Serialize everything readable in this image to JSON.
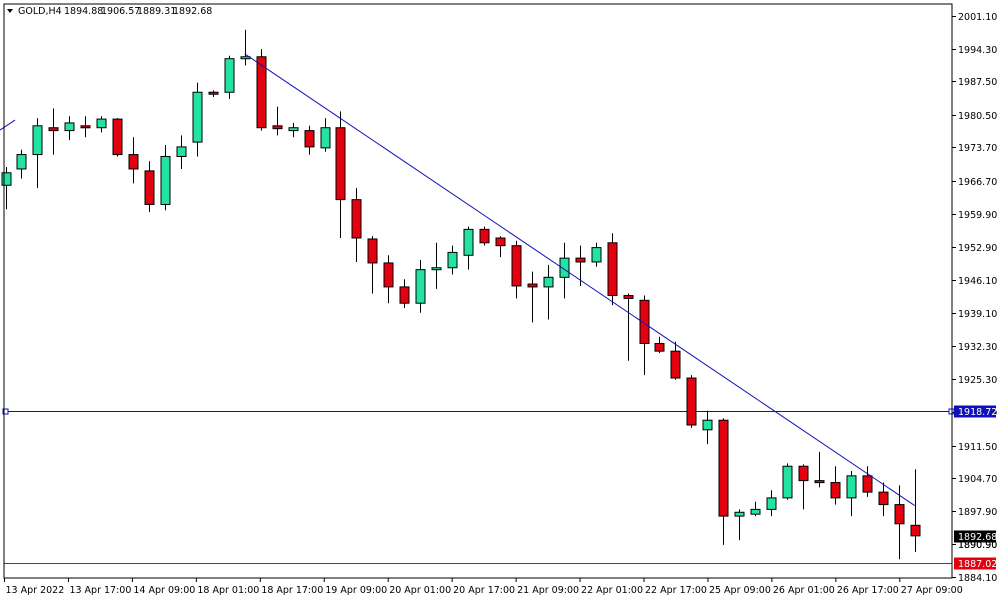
{
  "header": {
    "symbol_label": "GOLD,H4",
    "open": "1894.88",
    "high": "1906.57",
    "low": "1889.31",
    "close": "1892.68"
  },
  "colors": {
    "bull": "#22e3a0",
    "bear": "#e3000f",
    "wick": "#000000",
    "trendline": "#1010b8",
    "hline_blue": "#1010b8",
    "hline_red": "#e3000f",
    "badge_blue_bg": "#1010b8",
    "badge_red_bg": "#e3000f"
  },
  "chart_data": {
    "type": "candlestick",
    "symbol": "GOLD",
    "timeframe": "H4",
    "ylim": [
      1884.1,
      2001.1
    ],
    "y_ticks": [
      "2001.10",
      "1994.30",
      "1987.50",
      "1980.50",
      "1973.70",
      "1966.70",
      "1959.90",
      "1952.90",
      "1946.10",
      "1939.10",
      "1932.30",
      "1925.30",
      "1918.50",
      "1911.50",
      "1904.70",
      "1897.90",
      "1890.90",
      "1884.10"
    ],
    "x_ticks": [
      "13 Apr 2022",
      "13 Apr 17:00",
      "14 Apr 09:00",
      "18 Apr 01:00",
      "18 Apr 17:00",
      "19 Apr 09:00",
      "20 Apr 01:00",
      "20 Apr 17:00",
      "21 Apr 09:00",
      "22 Apr 01:00",
      "22 Apr 17:00",
      "25 Apr 09:00",
      "26 Apr 01:00",
      "26 Apr 17:00",
      "27 Apr 09:00"
    ],
    "candles": [
      {
        "o": 1965.8,
        "h": 1969.6,
        "l": 1960.8,
        "c": 1968.4
      },
      {
        "o": 1969.2,
        "h": 1973.2,
        "l": 1967.2,
        "c": 1972.2
      },
      {
        "o": 1972.2,
        "h": 1979.8,
        "l": 1965.2,
        "c": 1978.2
      },
      {
        "o": 1977.8,
        "h": 1981.8,
        "l": 1972.2,
        "c": 1977.2
      },
      {
        "o": 1977.2,
        "h": 1980.2,
        "l": 1975.2,
        "c": 1978.8
      },
      {
        "o": 1978.2,
        "h": 1980.2,
        "l": 1975.8,
        "c": 1977.8
      },
      {
        "o": 1977.8,
        "h": 1980.2,
        "l": 1976.8,
        "c": 1979.6
      },
      {
        "o": 1979.6,
        "h": 1979.8,
        "l": 1971.8,
        "c": 1972.2
      },
      {
        "o": 1972.2,
        "h": 1975.8,
        "l": 1966.2,
        "c": 1969.2
      },
      {
        "o": 1968.8,
        "h": 1970.8,
        "l": 1960.2,
        "c": 1961.8
      },
      {
        "o": 1961.8,
        "h": 1974.2,
        "l": 1960.6,
        "c": 1971.8
      },
      {
        "o": 1971.8,
        "h": 1976.2,
        "l": 1969.2,
        "c": 1973.8
      },
      {
        "o": 1974.8,
        "h": 1987.2,
        "l": 1971.8,
        "c": 1985.2
      },
      {
        "o": 1985.2,
        "h": 1985.6,
        "l": 1984.2,
        "c": 1984.8
      },
      {
        "o": 1985.2,
        "h": 1992.8,
        "l": 1983.8,
        "c": 1992.2
      },
      {
        "o": 1992.2,
        "h": 1998.2,
        "l": 1990.8,
        "c": 1992.6
      },
      {
        "o": 1992.6,
        "h": 1994.2,
        "l": 1977.2,
        "c": 1977.8
      },
      {
        "o": 1978.2,
        "h": 1982.2,
        "l": 1976.2,
        "c": 1977.6
      },
      {
        "o": 1977.2,
        "h": 1978.8,
        "l": 1975.8,
        "c": 1977.8
      },
      {
        "o": 1977.2,
        "h": 1978.2,
        "l": 1972.2,
        "c": 1973.8
      },
      {
        "o": 1973.6,
        "h": 1979.8,
        "l": 1972.8,
        "c": 1977.8
      },
      {
        "o": 1977.8,
        "h": 1981.2,
        "l": 1954.8,
        "c": 1962.8
      },
      {
        "o": 1962.8,
        "h": 1965.2,
        "l": 1949.8,
        "c": 1954.8
      },
      {
        "o": 1954.6,
        "h": 1955.2,
        "l": 1943.2,
        "c": 1949.6
      },
      {
        "o": 1949.6,
        "h": 1951.2,
        "l": 1941.2,
        "c": 1944.6
      },
      {
        "o": 1944.6,
        "h": 1946.2,
        "l": 1940.2,
        "c": 1941.2
      },
      {
        "o": 1941.2,
        "h": 1950.2,
        "l": 1939.2,
        "c": 1948.2
      },
      {
        "o": 1948.2,
        "h": 1953.8,
        "l": 1944.2,
        "c": 1948.6
      },
      {
        "o": 1948.6,
        "h": 1953.2,
        "l": 1947.2,
        "c": 1951.8
      },
      {
        "o": 1951.2,
        "h": 1957.2,
        "l": 1948.2,
        "c": 1956.6
      },
      {
        "o": 1956.6,
        "h": 1957.2,
        "l": 1953.2,
        "c": 1953.8
      },
      {
        "o": 1954.8,
        "h": 1955.2,
        "l": 1950.8,
        "c": 1953.2
      },
      {
        "o": 1953.2,
        "h": 1954.2,
        "l": 1942.2,
        "c": 1944.8
      },
      {
        "o": 1945.2,
        "h": 1947.8,
        "l": 1937.2,
        "c": 1944.6
      },
      {
        "o": 1944.6,
        "h": 1949.2,
        "l": 1937.8,
        "c": 1946.6
      },
      {
        "o": 1946.6,
        "h": 1953.8,
        "l": 1942.2,
        "c": 1950.6
      },
      {
        "o": 1950.6,
        "h": 1953.2,
        "l": 1944.8,
        "c": 1949.8
      },
      {
        "o": 1949.8,
        "h": 1953.8,
        "l": 1948.8,
        "c": 1952.8
      },
      {
        "o": 1953.8,
        "h": 1955.8,
        "l": 1940.8,
        "c": 1942.8
      },
      {
        "o": 1942.8,
        "h": 1943.2,
        "l": 1929.2,
        "c": 1942.2
      },
      {
        "o": 1941.8,
        "h": 1942.8,
        "l": 1926.2,
        "c": 1932.8
      },
      {
        "o": 1932.8,
        "h": 1934.2,
        "l": 1930.8,
        "c": 1931.2
      },
      {
        "o": 1931.2,
        "h": 1933.2,
        "l": 1925.2,
        "c": 1925.6
      },
      {
        "o": 1925.6,
        "h": 1926.2,
        "l": 1915.2,
        "c": 1915.8
      },
      {
        "o": 1914.8,
        "h": 1918.8,
        "l": 1911.8,
        "c": 1916.8
      },
      {
        "o": 1916.8,
        "h": 1917.2,
        "l": 1890.8,
        "c": 1896.8
      },
      {
        "o": 1896.8,
        "h": 1898.2,
        "l": 1891.8,
        "c": 1897.6
      },
      {
        "o": 1897.2,
        "h": 1899.8,
        "l": 1896.8,
        "c": 1898.2
      },
      {
        "o": 1898.2,
        "h": 1902.2,
        "l": 1896.8,
        "c": 1900.6
      },
      {
        "o": 1900.6,
        "h": 1907.8,
        "l": 1900.2,
        "c": 1907.2
      },
      {
        "o": 1907.2,
        "h": 1907.6,
        "l": 1898.2,
        "c": 1904.2
      },
      {
        "o": 1904.2,
        "h": 1910.2,
        "l": 1902.8,
        "c": 1904.0
      },
      {
        "o": 1903.8,
        "h": 1907.2,
        "l": 1899.2,
        "c": 1900.6
      },
      {
        "o": 1900.6,
        "h": 1906.2,
        "l": 1896.8,
        "c": 1905.2
      },
      {
        "o": 1905.2,
        "h": 1907.2,
        "l": 1900.8,
        "c": 1901.8
      },
      {
        "o": 1901.8,
        "h": 1903.8,
        "l": 1896.8,
        "c": 1899.2
      },
      {
        "o": 1899.2,
        "h": 1903.2,
        "l": 1887.8,
        "c": 1895.2
      },
      {
        "o": 1894.88,
        "h": 1906.57,
        "l": 1889.31,
        "c": 1892.68
      }
    ],
    "trendline": {
      "start": {
        "candle": 15,
        "price": 1993.2
      },
      "end": {
        "candle": 57,
        "price": 1899.0
      }
    },
    "trend_stub": {
      "start": {
        "candle": -0.4,
        "price": 1977.2
      },
      "end": {
        "candle": 0.6,
        "price": 1979.4
      }
    },
    "hlines": [
      {
        "price": 1918.72,
        "label": "1918.72",
        "color_key": "hline_blue",
        "label_bg": "badge_blue_bg"
      },
      {
        "price": 1887.02,
        "label": "1887.02",
        "color_key": "hline_red",
        "label_bg": "badge_red_bg"
      }
    ],
    "current_price": {
      "price": 1892.68,
      "label": "1892.68"
    },
    "clipped_tick_label": {
      "price": 1890.9,
      "label": "1890.90"
    }
  }
}
